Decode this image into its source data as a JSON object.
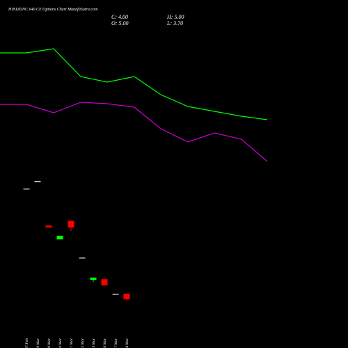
{
  "chart_data": {
    "type": "candlestick",
    "title": "HINDZINC 640  CE Options  Chart MunafaSutra.com",
    "header": [
      "C: 4.00",
      "H: 5.00",
      "O: 5.00",
      "L: 3.70"
    ],
    "categories": [
      "27 Feb",
      "03 Mar",
      "06 Mar",
      "10 Mar",
      "11 Mar",
      "12 Mar",
      "13 Mar",
      "16 Mar",
      "17 Mar",
      "18 Mar"
    ],
    "open": [
      23.9,
      25.25,
      17.25,
      14.75,
      18.1,
      11.5,
      7.5,
      7.6,
      5.0,
      5.0
    ],
    "high": [
      23.9,
      25.25,
      17.25,
      15.4,
      18.1,
      11.5,
      7.9,
      7.6,
      5.0,
      5.0
    ],
    "low": [
      23.9,
      25.25,
      16.9,
      14.75,
      16.25,
      11.5,
      7.1,
      6.5,
      5.0,
      3.7
    ],
    "close": [
      23.9,
      25.25,
      16.9,
      15.4,
      16.9,
      11.5,
      7.9,
      6.5,
      5.0,
      4.0
    ],
    "up_color": "#00ff00",
    "down_color": "#ff0000",
    "flat_color": "#cccccc",
    "xlim": [
      -2.375,
      28.875
    ],
    "ylim": [
      0,
      57.75
    ],
    "lines": [
      {
        "color": "#00ff00",
        "x": [
          -2.375,
          0,
          2.44,
          4.875,
          7.25,
          9.69,
          12.06,
          14.5,
          16.875,
          19.31,
          21.625
        ],
        "values": [
          48.25,
          48.25,
          49,
          44,
          43,
          44,
          40.75,
          38.625,
          37.75,
          36.875,
          36.25
        ]
      },
      {
        "color": "#cc00cc",
        "x": [
          -2.375,
          0,
          2.44,
          4.875,
          7.25,
          9.69,
          12.06,
          14.5,
          16.875,
          19.31,
          21.625
        ],
        "values": [
          39,
          39,
          37.5,
          39.375,
          39.125,
          38.5,
          34.625,
          32.25,
          33.875,
          32.75,
          28.75
        ]
      }
    ]
  }
}
